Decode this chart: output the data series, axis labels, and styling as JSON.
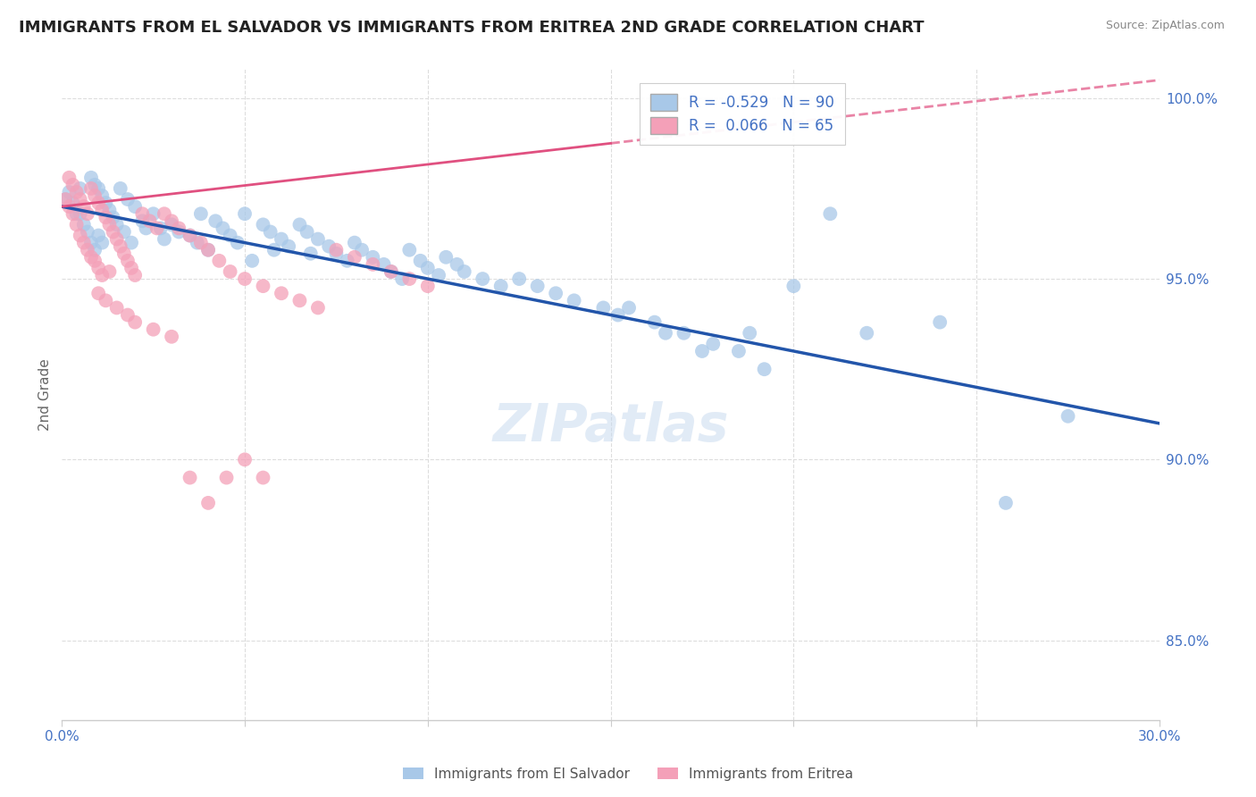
{
  "title": "IMMIGRANTS FROM EL SALVADOR VS IMMIGRANTS FROM ERITREA 2ND GRADE CORRELATION CHART",
  "source": "Source: ZipAtlas.com",
  "ylabel": "2nd Grade",
  "xlim": [
    0.0,
    0.3
  ],
  "ylim": [
    0.828,
    1.008
  ],
  "yticks": [
    0.85,
    0.9,
    0.95,
    1.0
  ],
  "ytick_labels": [
    "85.0%",
    "90.0%",
    "95.0%",
    "100.0%"
  ],
  "xtick_labels": [
    "0.0%",
    "",
    "",
    "",
    "",
    "",
    "30.0%"
  ],
  "blue_color": "#a8c8e8",
  "pink_color": "#f4a0b8",
  "blue_line_color": "#2255aa",
  "pink_line_color": "#e05080",
  "axis_color": "#4472c4",
  "legend_R_blue": "R = -0.529",
  "legend_N_blue": "N = 90",
  "legend_R_pink": "R =  0.066",
  "legend_N_pink": "N = 65",
  "blue_line_x0": 0.0,
  "blue_line_y0": 0.97,
  "blue_line_x1": 0.3,
  "blue_line_y1": 0.91,
  "pink_line_x0": 0.0,
  "pink_line_y0": 0.97,
  "pink_line_x1": 0.3,
  "pink_line_y1": 1.005,
  "watermark": "ZIPatlas",
  "blue_dots_x": [
    0.001,
    0.002,
    0.003,
    0.004,
    0.005,
    0.005,
    0.006,
    0.007,
    0.008,
    0.008,
    0.009,
    0.009,
    0.01,
    0.01,
    0.011,
    0.011,
    0.012,
    0.013,
    0.014,
    0.015,
    0.016,
    0.017,
    0.018,
    0.019,
    0.02,
    0.022,
    0.023,
    0.025,
    0.027,
    0.028,
    0.03,
    0.032,
    0.035,
    0.037,
    0.038,
    0.04,
    0.042,
    0.044,
    0.046,
    0.048,
    0.05,
    0.052,
    0.055,
    0.057,
    0.058,
    0.06,
    0.062,
    0.065,
    0.067,
    0.068,
    0.07,
    0.073,
    0.075,
    0.078,
    0.08,
    0.082,
    0.085,
    0.088,
    0.09,
    0.093,
    0.095,
    0.098,
    0.1,
    0.103,
    0.105,
    0.108,
    0.11,
    0.115,
    0.12,
    0.125,
    0.13,
    0.135,
    0.14,
    0.148,
    0.155,
    0.162,
    0.17,
    0.178,
    0.185,
    0.192,
    0.2,
    0.21,
    0.22,
    0.152,
    0.165,
    0.175,
    0.188,
    0.24,
    0.258,
    0.275
  ],
  "blue_dots_y": [
    0.972,
    0.974,
    0.971,
    0.968,
    0.975,
    0.968,
    0.965,
    0.963,
    0.978,
    0.96,
    0.976,
    0.958,
    0.975,
    0.962,
    0.973,
    0.96,
    0.971,
    0.969,
    0.967,
    0.965,
    0.975,
    0.963,
    0.972,
    0.96,
    0.97,
    0.966,
    0.964,
    0.968,
    0.964,
    0.961,
    0.965,
    0.963,
    0.962,
    0.96,
    0.968,
    0.958,
    0.966,
    0.964,
    0.962,
    0.96,
    0.968,
    0.955,
    0.965,
    0.963,
    0.958,
    0.961,
    0.959,
    0.965,
    0.963,
    0.957,
    0.961,
    0.959,
    0.957,
    0.955,
    0.96,
    0.958,
    0.956,
    0.954,
    0.952,
    0.95,
    0.958,
    0.955,
    0.953,
    0.951,
    0.956,
    0.954,
    0.952,
    0.95,
    0.948,
    0.95,
    0.948,
    0.946,
    0.944,
    0.942,
    0.942,
    0.938,
    0.935,
    0.932,
    0.93,
    0.925,
    0.948,
    0.968,
    0.935,
    0.94,
    0.935,
    0.93,
    0.935,
    0.938,
    0.888,
    0.912
  ],
  "pink_dots_x": [
    0.001,
    0.002,
    0.002,
    0.003,
    0.003,
    0.004,
    0.004,
    0.005,
    0.005,
    0.006,
    0.006,
    0.007,
    0.007,
    0.008,
    0.008,
    0.009,
    0.009,
    0.01,
    0.01,
    0.011,
    0.011,
    0.012,
    0.013,
    0.013,
    0.014,
    0.015,
    0.016,
    0.017,
    0.018,
    0.019,
    0.02,
    0.022,
    0.024,
    0.026,
    0.028,
    0.03,
    0.032,
    0.035,
    0.038,
    0.04,
    0.043,
    0.046,
    0.05,
    0.055,
    0.06,
    0.065,
    0.07,
    0.075,
    0.08,
    0.085,
    0.09,
    0.095,
    0.1,
    0.01,
    0.012,
    0.015,
    0.018,
    0.02,
    0.025,
    0.03,
    0.035,
    0.04,
    0.045,
    0.05,
    0.055
  ],
  "pink_dots_y": [
    0.972,
    0.978,
    0.97,
    0.976,
    0.968,
    0.974,
    0.965,
    0.972,
    0.962,
    0.97,
    0.96,
    0.968,
    0.958,
    0.975,
    0.956,
    0.973,
    0.955,
    0.971,
    0.953,
    0.969,
    0.951,
    0.967,
    0.965,
    0.952,
    0.963,
    0.961,
    0.959,
    0.957,
    0.955,
    0.953,
    0.951,
    0.968,
    0.966,
    0.964,
    0.968,
    0.966,
    0.964,
    0.962,
    0.96,
    0.958,
    0.955,
    0.952,
    0.95,
    0.948,
    0.946,
    0.944,
    0.942,
    0.958,
    0.956,
    0.954,
    0.952,
    0.95,
    0.948,
    0.946,
    0.944,
    0.942,
    0.94,
    0.938,
    0.936,
    0.934,
    0.895,
    0.888,
    0.895,
    0.9,
    0.895
  ]
}
